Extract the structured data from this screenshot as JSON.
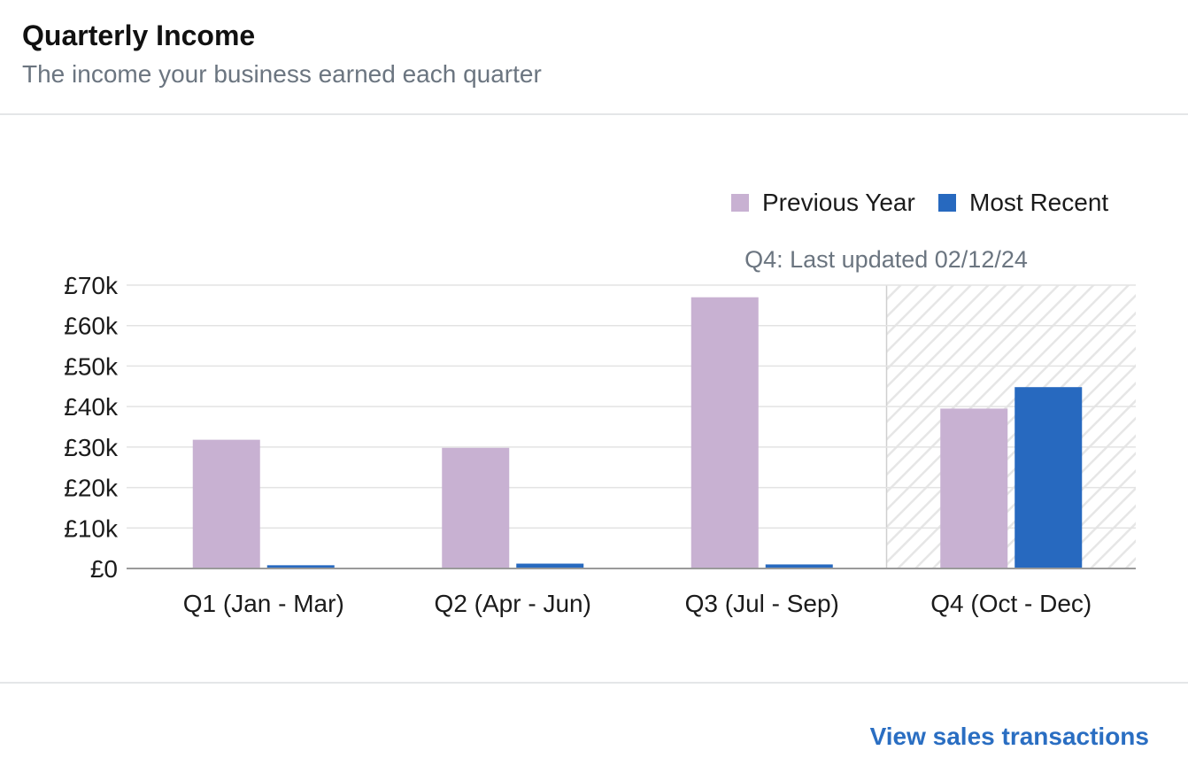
{
  "header": {
    "title": "Quarterly Income",
    "subtitle": "The income your business earned each quarter"
  },
  "footer": {
    "link_label": "View sales transactions"
  },
  "colors": {
    "previous_year": "#c8b1d2",
    "most_recent": "#2769bf",
    "link": "#2a6ec2",
    "grid": "#e3e3e3",
    "axis": "#9a9a9a"
  },
  "chart_data": {
    "type": "bar",
    "categories": [
      "Q1 (Jan - Mar)",
      "Q2 (Apr - Jun)",
      "Q3 (Jul - Sep)",
      "Q4 (Oct - Dec)"
    ],
    "series": [
      {
        "name": "Previous Year",
        "values": [
          31800,
          29800,
          67000,
          39500
        ]
      },
      {
        "name": "Most Recent",
        "values": [
          800,
          1200,
          1000,
          44800
        ]
      }
    ],
    "y_ticks": [
      "£0",
      "£10k",
      "£20k",
      "£30k",
      "£40k",
      "£50k",
      "£60k",
      "£70k"
    ],
    "ylim": [
      0,
      70000
    ],
    "grid": true,
    "legend_position": "top-right",
    "highlighted_category": "Q4 (Oct - Dec)",
    "annotation": "Q4: Last updated 02/12/24"
  }
}
